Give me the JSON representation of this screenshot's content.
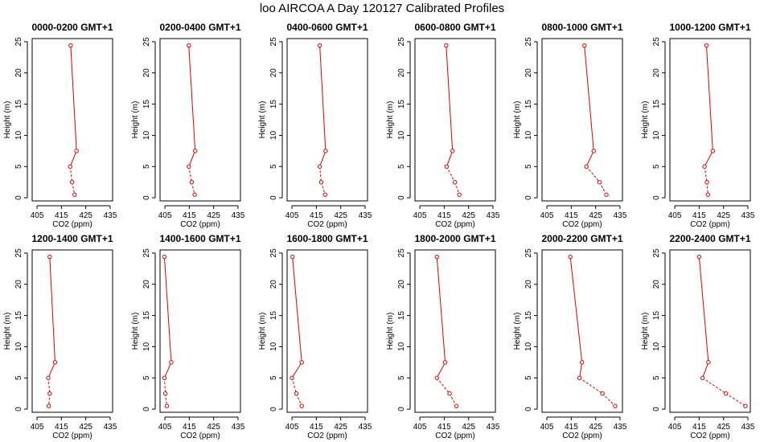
{
  "title": "loo AIRCOA A  Day 120127  Calibrated Profiles",
  "colors": {
    "series": "#dd0000",
    "axis": "#000000"
  },
  "chart_data": [
    {
      "type": "line",
      "title": "0000-0200 GMT+1",
      "xlabel": "CO2 (ppm)",
      "ylabel": "Height (m)",
      "xlim": [
        403,
        436
      ],
      "ylim": [
        -0.5,
        25.5
      ],
      "xticks": [
        405,
        415,
        425,
        435
      ],
      "yticks": [
        0,
        5,
        10,
        15,
        20,
        25
      ],
      "points": [
        {
          "x": 418.8,
          "y": 24.4
        },
        {
          "x": 421.2,
          "y": 7.5
        },
        {
          "x": 418.6,
          "y": 5.0
        },
        {
          "x": 419.4,
          "y": 2.5
        },
        {
          "x": 420.4,
          "y": 0.5
        }
      ]
    },
    {
      "type": "line",
      "title": "0200-0400 GMT+1",
      "xlabel": "CO2 (ppm)",
      "ylabel": "Height (m)",
      "xlim": [
        403,
        436
      ],
      "ylim": [
        -0.5,
        25.5
      ],
      "xticks": [
        405,
        415,
        425,
        435
      ],
      "yticks": [
        0,
        5,
        10,
        15,
        20,
        25
      ],
      "points": [
        {
          "x": 414.8,
          "y": 24.4
        },
        {
          "x": 417.4,
          "y": 7.5
        },
        {
          "x": 414.8,
          "y": 5.0
        },
        {
          "x": 416.0,
          "y": 2.5
        },
        {
          "x": 417.2,
          "y": 0.5
        }
      ]
    },
    {
      "type": "line",
      "title": "0400-0600 GMT+1",
      "xlabel": "CO2 (ppm)",
      "ylabel": "Height (m)",
      "xlim": [
        403,
        436
      ],
      "ylim": [
        -0.5,
        25.5
      ],
      "xticks": [
        405,
        415,
        425,
        435
      ],
      "yticks": [
        0,
        5,
        10,
        15,
        20,
        25
      ],
      "points": [
        {
          "x": 416.4,
          "y": 24.4
        },
        {
          "x": 418.8,
          "y": 7.5
        },
        {
          "x": 416.4,
          "y": 5.0
        },
        {
          "x": 417.0,
          "y": 2.5
        },
        {
          "x": 418.6,
          "y": 0.5
        }
      ]
    },
    {
      "type": "line",
      "title": "0600-0800 GMT+1",
      "xlabel": "CO2 (ppm)",
      "ylabel": "Height (m)",
      "xlim": [
        403,
        436
      ],
      "ylim": [
        -0.5,
        25.5
      ],
      "xticks": [
        405,
        415,
        425,
        435
      ],
      "yticks": [
        0,
        5,
        10,
        15,
        20,
        25
      ],
      "points": [
        {
          "x": 415.8,
          "y": 24.4
        },
        {
          "x": 418.4,
          "y": 7.5
        },
        {
          "x": 416.0,
          "y": 5.0
        },
        {
          "x": 419.4,
          "y": 2.5
        },
        {
          "x": 421.2,
          "y": 0.5
        }
      ]
    },
    {
      "type": "line",
      "title": "0800-1000 GMT+1",
      "xlabel": "CO2 (ppm)",
      "ylabel": "Height (m)",
      "xlim": [
        403,
        436
      ],
      "ylim": [
        -0.5,
        25.5
      ],
      "xticks": [
        405,
        415,
        425,
        435
      ],
      "yticks": [
        0,
        5,
        10,
        15,
        20,
        25
      ],
      "points": [
        {
          "x": 420.4,
          "y": 24.4
        },
        {
          "x": 424.2,
          "y": 7.5
        },
        {
          "x": 421.2,
          "y": 5.0
        },
        {
          "x": 426.6,
          "y": 2.5
        },
        {
          "x": 429.4,
          "y": 0.5
        }
      ]
    },
    {
      "type": "line",
      "title": "1000-1200 GMT+1",
      "xlabel": "CO2 (ppm)",
      "ylabel": "Height (m)",
      "xlim": [
        403,
        436
      ],
      "ylim": [
        -0.5,
        25.5
      ],
      "xticks": [
        405,
        415,
        425,
        435
      ],
      "yticks": [
        0,
        5,
        10,
        15,
        20,
        25
      ],
      "points": [
        {
          "x": 418.0,
          "y": 24.4
        },
        {
          "x": 420.6,
          "y": 7.5
        },
        {
          "x": 417.2,
          "y": 5.0
        },
        {
          "x": 418.2,
          "y": 2.5
        },
        {
          "x": 418.6,
          "y": 0.5
        }
      ]
    },
    {
      "type": "line",
      "title": "1200-1400 GMT+1",
      "xlabel": "CO2 (ppm)",
      "ylabel": "Height (m)",
      "xlim": [
        403,
        436
      ],
      "ylim": [
        -0.5,
        25.5
      ],
      "xticks": [
        405,
        415,
        425,
        435
      ],
      "yticks": [
        0,
        5,
        10,
        15,
        20,
        25
      ],
      "points": [
        {
          "x": 410.2,
          "y": 24.4
        },
        {
          "x": 412.4,
          "y": 7.5
        },
        {
          "x": 409.6,
          "y": 5.0
        },
        {
          "x": 410.2,
          "y": 2.5
        },
        {
          "x": 409.8,
          "y": 0.5
        }
      ]
    },
    {
      "type": "line",
      "title": "1400-1600 GMT+1",
      "xlabel": "CO2 (ppm)",
      "ylabel": "Height (m)",
      "xlim": [
        403,
        436
      ],
      "ylim": [
        -0.5,
        25.5
      ],
      "xticks": [
        405,
        415,
        425,
        435
      ],
      "yticks": [
        0,
        5,
        10,
        15,
        20,
        25
      ],
      "points": [
        {
          "x": 404.8,
          "y": 24.4
        },
        {
          "x": 407.6,
          "y": 7.5
        },
        {
          "x": 404.8,
          "y": 5.0
        },
        {
          "x": 405.2,
          "y": 2.5
        },
        {
          "x": 405.8,
          "y": 0.5
        }
      ]
    },
    {
      "type": "line",
      "title": "1600-1800 GMT+1",
      "xlabel": "CO2 (ppm)",
      "ylabel": "Height (m)",
      "xlim": [
        403,
        436
      ],
      "ylim": [
        -0.5,
        25.5
      ],
      "xticks": [
        405,
        415,
        425,
        435
      ],
      "yticks": [
        0,
        5,
        10,
        15,
        20,
        25
      ],
      "points": [
        {
          "x": 405.2,
          "y": 24.4
        },
        {
          "x": 409.0,
          "y": 7.5
        },
        {
          "x": 405.0,
          "y": 5.0
        },
        {
          "x": 406.8,
          "y": 2.5
        },
        {
          "x": 409.0,
          "y": 0.5
        }
      ]
    },
    {
      "type": "line",
      "title": "1800-2000 GMT+1",
      "xlabel": "CO2 (ppm)",
      "ylabel": "Height (m)",
      "xlim": [
        403,
        436
      ],
      "ylim": [
        -0.5,
        25.5
      ],
      "xticks": [
        405,
        415,
        425,
        435
      ],
      "yticks": [
        0,
        5,
        10,
        15,
        20,
        25
      ],
      "points": [
        {
          "x": 412.0,
          "y": 24.4
        },
        {
          "x": 415.4,
          "y": 7.5
        },
        {
          "x": 412.0,
          "y": 5.0
        },
        {
          "x": 417.2,
          "y": 2.5
        },
        {
          "x": 420.0,
          "y": 0.5
        }
      ]
    },
    {
      "type": "line",
      "title": "2000-2200 GMT+1",
      "xlabel": "CO2 (ppm)",
      "ylabel": "Height (m)",
      "xlim": [
        403,
        436
      ],
      "ylim": [
        -0.5,
        25.5
      ],
      "xticks": [
        405,
        415,
        425,
        435
      ],
      "yticks": [
        0,
        5,
        10,
        15,
        20,
        25
      ],
      "points": [
        {
          "x": 414.6,
          "y": 24.4
        },
        {
          "x": 419.4,
          "y": 7.5
        },
        {
          "x": 418.4,
          "y": 5.0
        },
        {
          "x": 427.8,
          "y": 2.5
        },
        {
          "x": 433.0,
          "y": 0.5
        }
      ]
    },
    {
      "type": "line",
      "title": "2200-2400 GMT+1",
      "xlabel": "CO2 (ppm)",
      "ylabel": "Height (m)",
      "xlim": [
        403,
        436
      ],
      "ylim": [
        -0.5,
        25.5
      ],
      "xticks": [
        405,
        415,
        425,
        435
      ],
      "yticks": [
        0,
        5,
        10,
        15,
        20,
        25
      ],
      "points": [
        {
          "x": 415.0,
          "y": 24.4
        },
        {
          "x": 418.8,
          "y": 7.5
        },
        {
          "x": 416.4,
          "y": 5.0
        },
        {
          "x": 426.0,
          "y": 2.5
        },
        {
          "x": 434.0,
          "y": 0.5
        }
      ]
    }
  ]
}
